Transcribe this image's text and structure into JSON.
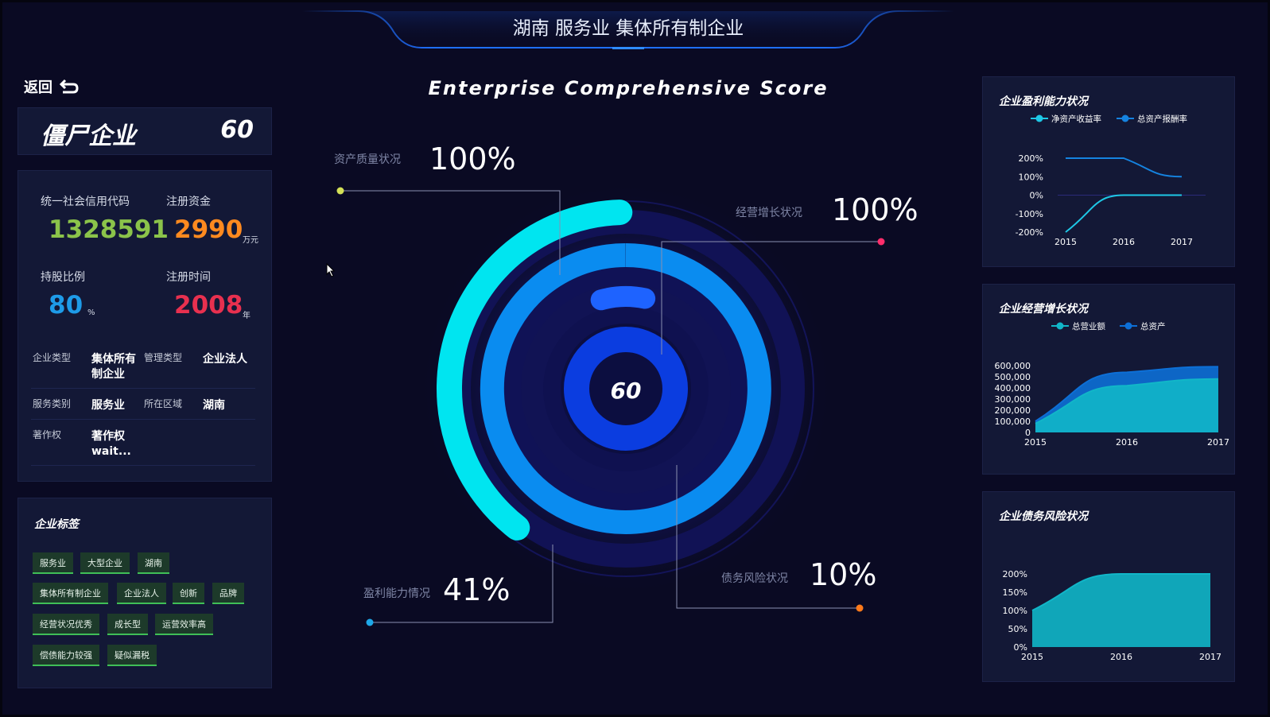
{
  "page_title": "湖南 服务业 集体所有制企业",
  "back": {
    "label": "返回"
  },
  "zombie": {
    "label": "僵尸企业",
    "score": "60"
  },
  "info": {
    "credit_code_label": "统一社会信用代码",
    "credit_code_value": "1328591",
    "capital_label": "注册资金",
    "capital_value": "2990",
    "capital_unit": "万元",
    "share_label": "持股比例",
    "share_value": "80",
    "share_unit": "%",
    "reg_time_label": "注册时间",
    "reg_time_value": "2008",
    "reg_time_unit": "年",
    "rows": [
      {
        "k1": "企业类型",
        "v1": "集体所有\n制企业",
        "k2": "管理类型",
        "v2": "企业法人"
      },
      {
        "k1": "服务类别",
        "v1": "服务业",
        "k2": "所在区域",
        "v2": "湖南"
      },
      {
        "k1": "著作权",
        "v1": "著作权\nwait...",
        "k2": "",
        "v2": ""
      }
    ]
  },
  "tags": {
    "title": "企业标签",
    "items": [
      "服务业",
      "大型企业",
      "湖南",
      "集体所有制企业",
      "企业法人",
      "创新",
      "品牌",
      "经营状况优秀",
      "成长型",
      "运营效率高",
      "偿债能力较强",
      "疑似漏税"
    ]
  },
  "score_chart": {
    "title": "Enterprise Comprehensive Score",
    "center_value": "60",
    "indicators": [
      {
        "label": "资产质量状况",
        "value": "100%",
        "fraction": 1.0,
        "color": "#00e5f0",
        "dot": "#d4e157"
      },
      {
        "label": "经营增长状况",
        "value": "100%",
        "fraction": 1.0,
        "color": "#0a8cf0",
        "dot": "#ff2d6b"
      },
      {
        "label": "盈利能力情况",
        "value": "41%",
        "fraction": 0.41,
        "color": "#1e63ff",
        "dot": "#1ea8e8"
      },
      {
        "label": "债务风险状况",
        "value": "10%",
        "fraction": 0.1,
        "color": "#0b3de0",
        "dot": "#ff7a1a"
      }
    ]
  },
  "colors": {
    "credit_code": "#8bc34a",
    "capital": "#ff8a1f",
    "share": "#1e9be8",
    "reg_time": "#e8304f",
    "panel_bg": "#131836",
    "tag_border": "#3fbf57"
  },
  "chart_data": [
    {
      "type": "line",
      "title": "企业盈利能力状况",
      "x": [
        "2015",
        "2016",
        "2017"
      ],
      "series": [
        {
          "name": "净资产收益率",
          "values": [
            -200,
            0,
            0
          ],
          "color": "#1ec8e6"
        },
        {
          "name": "总资产报酬率",
          "values": [
            200,
            200,
            100
          ],
          "color": "#1583e0"
        }
      ],
      "yticks": [
        "200%",
        "100%",
        "0%",
        "-100%",
        "-200%"
      ],
      "ylim": [
        -200,
        200
      ],
      "legend": "top-center"
    },
    {
      "type": "area",
      "title": "企业经营增长状况",
      "x": [
        "2015",
        "2016",
        "2017"
      ],
      "series": [
        {
          "name": "总营业额",
          "values": [
            80000,
            420000,
            480000
          ],
          "color": "#11b6c8"
        },
        {
          "name": "总资产",
          "values": [
            100000,
            540000,
            590000
          ],
          "color": "#0d6fd6"
        }
      ],
      "yticks": [
        "600,000",
        "500,000",
        "400,000",
        "300,000",
        "200,000",
        "100,000",
        "0"
      ],
      "ylim": [
        0,
        600000
      ],
      "legend": "top-center"
    },
    {
      "type": "area",
      "title": "企业债务风险状况",
      "x": [
        "2015",
        "2016",
        "2017"
      ],
      "series": [
        {
          "name": "",
          "values": [
            100,
            200,
            200
          ],
          "color": "#11b6c8"
        }
      ],
      "yticks": [
        "200%",
        "150%",
        "100%",
        "50%",
        "0%"
      ],
      "ylim": [
        0,
        200
      ]
    }
  ]
}
